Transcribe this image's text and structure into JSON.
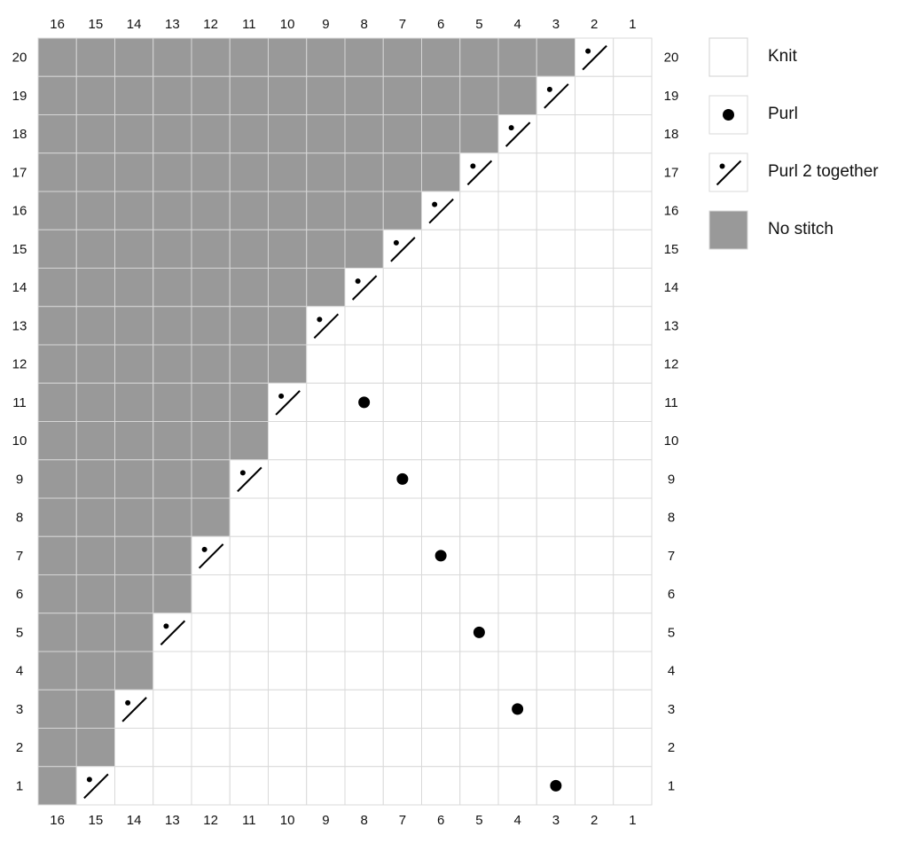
{
  "columns": [
    "16",
    "15",
    "14",
    "13",
    "12",
    "11",
    "10",
    "9",
    "8",
    "7",
    "6",
    "5",
    "4",
    "3",
    "2",
    "1"
  ],
  "rows": [
    {
      "label": "20",
      "stitches": "NNNNNNNNNNNNNNTK"
    },
    {
      "label": "19",
      "stitches": "NNNNNNNNNNNNNTKK"
    },
    {
      "label": "18",
      "stitches": "NNNNNNNNNNNNTKKK"
    },
    {
      "label": "17",
      "stitches": "NNNNNNNNNNNTKKKK"
    },
    {
      "label": "16",
      "stitches": "NNNNNNNNNNTKKKKK"
    },
    {
      "label": "15",
      "stitches": "NNNNNNNNNTKKKKKK"
    },
    {
      "label": "14",
      "stitches": "NNNNNNNNTKKKKKKK"
    },
    {
      "label": "13",
      "stitches": "NNNNNNNTKKKKKKKK"
    },
    {
      "label": "12",
      "stitches": "NNNNNNNKKKKKKKKK"
    },
    {
      "label": "11",
      "stitches": "NNNNNNTKPKKKKKKK"
    },
    {
      "label": "10",
      "stitches": "NNNNNNKKKKKKKKKK"
    },
    {
      "label": "9",
      "stitches": "NNNNNTKKKPKKKKKK"
    },
    {
      "label": "8",
      "stitches": "NNNNNKKKKKKKKKKK"
    },
    {
      "label": "7",
      "stitches": "NNNNTKKKKKPKKKKK"
    },
    {
      "label": "6",
      "stitches": "NNNNKKKKKKKKKKKK"
    },
    {
      "label": "5",
      "stitches": "NNNTKKKKKKKPKKKK"
    },
    {
      "label": "4",
      "stitches": "NNNKKKKKKKKKKKKK"
    },
    {
      "label": "3",
      "stitches": "NNTKKKKKKKKKPKKK"
    },
    {
      "label": "2",
      "stitches": "NNKKKKKKKKKKKKKK"
    },
    {
      "label": "1",
      "stitches": "NTKKKKKKKKKKKPKK"
    }
  ],
  "legend": [
    {
      "symbol": "K",
      "label": "Knit"
    },
    {
      "symbol": "P",
      "label": "Purl"
    },
    {
      "symbol": "T",
      "label": "Purl 2 together"
    },
    {
      "symbol": "N",
      "label": "No stitch"
    }
  ]
}
